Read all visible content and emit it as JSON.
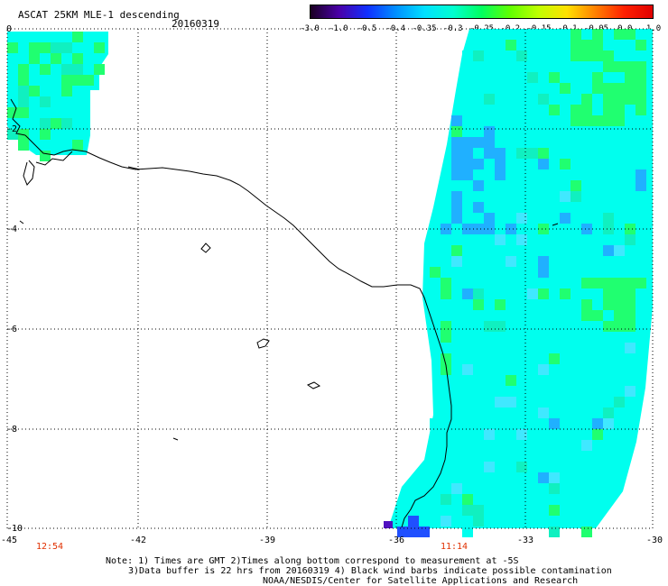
{
  "header": {
    "title": "ASCAT 25KM MLE-1 descending",
    "date": "20160319"
  },
  "colorbar": {
    "labels": [
      "-3.0",
      "-1.0",
      "-0.5",
      "-0.4",
      "-0.35",
      "-0.3",
      "-0.25",
      "-0.2",
      "-0.15",
      "-0.1",
      "-0.05",
      "0.0",
      "1.0"
    ],
    "colors": [
      "#1a0022",
      "#4a00a8",
      "#1030ff",
      "#0090ff",
      "#00e0ff",
      "#00ffd0",
      "#00ff60",
      "#60ff00",
      "#c0ff00",
      "#ffe000",
      "#ff8000",
      "#ff2000",
      "#e00000"
    ]
  },
  "axes": {
    "lat_labels": [
      "0",
      "-2",
      "-4",
      "-6",
      "-8",
      "-10"
    ],
    "lon_labels": [
      "-45",
      "-42",
      "-39",
      "-36",
      "-33",
      "-30"
    ],
    "lon_range": [
      -45,
      -30
    ],
    "lat_range": [
      -10,
      0
    ]
  },
  "times": [
    "12:54",
    "11:14"
  ],
  "notes": {
    "line1": "Note: 1) Times are GMT 2)Times along bottom correspond to measurement at -5S",
    "line2": "3)Data buffer is 22 hrs from 20160319 4) Black wind barbs indicate possible contamination",
    "line3": "NOAA/NESDIS/Center for Satellite Applications and Research"
  },
  "swath_colors": {
    "main": "#00ffee",
    "green": "#20ff70",
    "blue": "#20b0ff",
    "deep": "#2050ff",
    "violet": "#5010c0"
  }
}
